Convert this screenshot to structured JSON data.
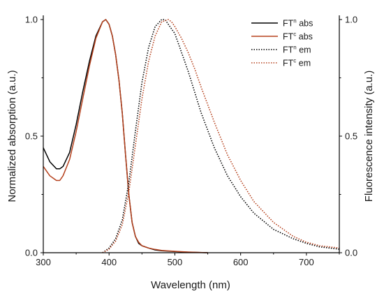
{
  "chart_data": {
    "type": "line",
    "xlabel": "Wavelength (nm)",
    "ylabel_left": "Normalized absorption (a.u.)",
    "ylabel_right": "Fluorescence intensity (a.u.)",
    "xlim": [
      300,
      750
    ],
    "ylim_left": [
      0,
      1
    ],
    "ylim_right": [
      0,
      1
    ],
    "x_ticks": [
      "300",
      "400",
      "500",
      "600",
      "700"
    ],
    "y_ticks_left": [
      "0.0",
      "0.5",
      "1.0"
    ],
    "y_ticks_right": [
      "0.0",
      "0.5",
      "1.0"
    ],
    "legend_position": "top-right",
    "series": [
      {
        "name": "FTⁿ abs",
        "legend_base": "FT",
        "legend_sup": "n",
        "legend_tail": " abs",
        "color": "#000000",
        "style": "solid",
        "x": [
          300,
          310,
          320,
          325,
          330,
          340,
          350,
          360,
          370,
          380,
          390,
          395,
          400,
          405,
          410,
          415,
          420,
          425,
          430,
          435,
          440,
          445,
          450,
          460,
          470,
          480,
          500,
          520,
          550
        ],
        "y": [
          0.45,
          0.39,
          0.36,
          0.36,
          0.37,
          0.43,
          0.55,
          0.69,
          0.82,
          0.93,
          0.99,
          1.0,
          0.98,
          0.93,
          0.85,
          0.74,
          0.6,
          0.42,
          0.25,
          0.13,
          0.07,
          0.04,
          0.03,
          0.02,
          0.012,
          0.008,
          0.005,
          0.002,
          0.0
        ]
      },
      {
        "name": "FTᶜ abs",
        "legend_base": "FT",
        "legend_sup": "c",
        "legend_tail": " abs",
        "color": "#b5401c",
        "style": "solid",
        "x": [
          300,
          310,
          320,
          325,
          330,
          340,
          350,
          360,
          370,
          380,
          390,
          395,
          400,
          405,
          410,
          415,
          420,
          425,
          430,
          435,
          440,
          445,
          450,
          460,
          470,
          480,
          500,
          520,
          550
        ],
        "y": [
          0.37,
          0.33,
          0.31,
          0.31,
          0.33,
          0.4,
          0.52,
          0.66,
          0.8,
          0.92,
          0.99,
          1.0,
          0.98,
          0.93,
          0.85,
          0.74,
          0.6,
          0.42,
          0.25,
          0.13,
          0.07,
          0.045,
          0.03,
          0.02,
          0.014,
          0.01,
          0.006,
          0.003,
          0.0
        ]
      },
      {
        "name": "FTⁿ em",
        "legend_base": "FT",
        "legend_sup": "n",
        "legend_tail": " em",
        "color": "#000000",
        "style": "dotted",
        "x": [
          390,
          400,
          410,
          420,
          430,
          440,
          450,
          460,
          470,
          480,
          485,
          490,
          495,
          500,
          510,
          520,
          530,
          540,
          560,
          580,
          600,
          620,
          650,
          680,
          700,
          720,
          750
        ],
        "y": [
          0.0,
          0.02,
          0.06,
          0.14,
          0.3,
          0.52,
          0.73,
          0.88,
          0.97,
          1.0,
          1.0,
          0.98,
          0.96,
          0.94,
          0.86,
          0.78,
          0.69,
          0.6,
          0.45,
          0.33,
          0.24,
          0.17,
          0.1,
          0.06,
          0.04,
          0.025,
          0.015
        ]
      },
      {
        "name": "FTᶜ em",
        "legend_base": "FT",
        "legend_sup": "c",
        "legend_tail": " em",
        "color": "#b5401c",
        "style": "dotted",
        "x": [
          390,
          400,
          410,
          420,
          430,
          440,
          450,
          460,
          470,
          480,
          490,
          495,
          500,
          510,
          520,
          530,
          540,
          560,
          580,
          600,
          620,
          650,
          680,
          700,
          720,
          750
        ],
        "y": [
          0.0,
          0.015,
          0.05,
          0.12,
          0.26,
          0.46,
          0.66,
          0.82,
          0.93,
          0.99,
          1.0,
          0.99,
          0.97,
          0.92,
          0.86,
          0.79,
          0.71,
          0.56,
          0.42,
          0.31,
          0.22,
          0.13,
          0.07,
          0.045,
          0.03,
          0.02
        ]
      }
    ]
  }
}
